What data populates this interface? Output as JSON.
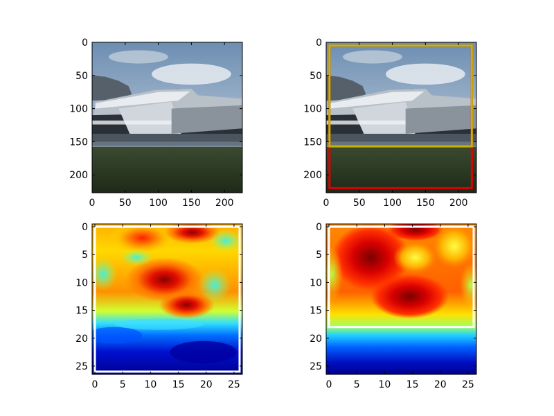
{
  "chart_data": [
    {
      "type": "image",
      "content": "photo",
      "xlim": [
        0,
        227
      ],
      "ylim": [
        227,
        0
      ],
      "x_ticks": [
        0,
        50,
        100,
        150,
        200
      ],
      "y_ticks": [
        0,
        50,
        100,
        150,
        200
      ],
      "boxes": []
    },
    {
      "type": "image",
      "content": "photo",
      "xlim": [
        0,
        227
      ],
      "ylim": [
        227,
        0
      ],
      "x_ticks": [
        0,
        50,
        100,
        150,
        200
      ],
      "y_ticks": [
        0,
        50,
        100,
        150,
        200
      ],
      "boxes": [
        {
          "color": "#e00000",
          "x0": 5,
          "y0": 5,
          "x1": 220,
          "y1": 220
        },
        {
          "color": "#c8b400",
          "x0": 5,
          "y0": 5,
          "x1": 220,
          "y1": 157
        }
      ]
    },
    {
      "type": "heatmap",
      "colormap": "jet",
      "content": "fine",
      "xlim": [
        -0.5,
        26.5
      ],
      "ylim": [
        26.5,
        -0.5
      ],
      "x_ticks": [
        0,
        5,
        10,
        15,
        20,
        25
      ],
      "y_ticks": [
        0,
        5,
        10,
        15,
        20,
        25
      ],
      "boxes": [
        {
          "color": "#ffffff",
          "x0": 0,
          "y0": 0,
          "x1": 26,
          "y1": 26
        }
      ]
    },
    {
      "type": "heatmap",
      "colormap": "jet",
      "content": "smooth",
      "xlim": [
        -0.5,
        26.5
      ],
      "ylim": [
        26.5,
        -0.5
      ],
      "x_ticks": [
        0,
        5,
        10,
        15,
        20,
        25
      ],
      "y_ticks": [
        0,
        5,
        10,
        15,
        20,
        25
      ],
      "boxes": [
        {
          "color": "#ffffff",
          "x0": 0,
          "y0": 0,
          "x1": 26,
          "y1": 18
        }
      ]
    }
  ]
}
